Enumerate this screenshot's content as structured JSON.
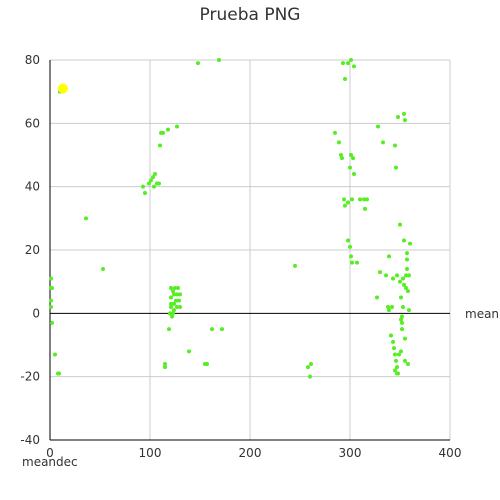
{
  "chart_data": {
    "type": "scatter",
    "title": "Prueba PNG",
    "xlabel": "mean",
    "ylabel": "meandec",
    "xlim": [
      0,
      400
    ],
    "ylim": [
      -40,
      80
    ],
    "x_ticks": [
      "0",
      "100",
      "200",
      "300",
      "400"
    ],
    "y_ticks": [
      "-40",
      "-20",
      "0",
      "20",
      "40",
      "60",
      "80"
    ],
    "grid": true,
    "colors": {
      "points": "#55ee22",
      "highlight": "#ffff00",
      "grid": "#cccccc",
      "axis": "#000000"
    },
    "highlight": {
      "x": 13,
      "y": 71
    },
    "series": [
      {
        "points": [
          [
            1,
            11
          ],
          [
            1,
            8
          ],
          [
            2,
            8
          ],
          [
            1,
            4
          ],
          [
            2,
            -3
          ],
          [
            1,
            2
          ],
          [
            5,
            -13
          ],
          [
            8,
            -19
          ],
          [
            9,
            -19
          ],
          [
            36,
            30
          ],
          [
            53,
            14
          ],
          [
            10,
            70
          ],
          [
            93,
            40
          ],
          [
            95,
            38
          ],
          [
            99,
            41
          ],
          [
            101,
            42
          ],
          [
            103,
            43
          ],
          [
            104,
            40
          ],
          [
            105,
            44
          ],
          [
            107,
            41
          ],
          [
            109,
            41
          ],
          [
            111,
            57
          ],
          [
            113,
            57
          ],
          [
            110,
            53
          ],
          [
            118,
            58
          ],
          [
            127,
            59
          ],
          [
            121,
            8
          ],
          [
            123,
            7
          ],
          [
            125,
            8
          ],
          [
            128,
            8
          ],
          [
            121,
            5
          ],
          [
            124,
            6
          ],
          [
            127,
            6
          ],
          [
            130,
            6
          ],
          [
            121,
            3
          ],
          [
            124,
            3
          ],
          [
            126,
            4
          ],
          [
            129,
            4
          ],
          [
            121,
            2
          ],
          [
            124,
            1
          ],
          [
            127,
            2
          ],
          [
            130,
            2
          ],
          [
            120,
            0
          ],
          [
            123,
            0
          ],
          [
            122,
            -1
          ],
          [
            119,
            -5
          ],
          [
            115,
            -16
          ],
          [
            115,
            -17
          ],
          [
            139,
            -12
          ],
          [
            155,
            -16
          ],
          [
            157,
            -16
          ],
          [
            162,
            -5
          ],
          [
            172,
            -5
          ],
          [
            148,
            79
          ],
          [
            169,
            80
          ],
          [
            245,
            15
          ],
          [
            258,
            -17
          ],
          [
            261,
            -16
          ],
          [
            260,
            -20
          ],
          [
            285,
            57
          ],
          [
            289,
            54
          ],
          [
            291,
            50
          ],
          [
            292,
            49
          ],
          [
            294,
            36
          ],
          [
            295,
            34
          ],
          [
            298,
            35
          ],
          [
            300,
            46
          ],
          [
            301,
            50
          ],
          [
            302,
            36
          ],
          [
            303,
            49
          ],
          [
            304,
            44
          ],
          [
            298,
            23
          ],
          [
            300,
            21
          ],
          [
            301,
            18
          ],
          [
            302,
            16
          ],
          [
            307,
            16
          ],
          [
            293,
            79
          ],
          [
            295,
            74
          ],
          [
            298,
            79
          ],
          [
            301,
            80
          ],
          [
            304,
            78
          ],
          [
            310,
            36
          ],
          [
            314,
            36
          ],
          [
            315,
            33
          ],
          [
            317,
            36
          ],
          [
            327,
            5
          ],
          [
            328,
            59
          ],
          [
            330,
            13
          ],
          [
            333,
            54
          ],
          [
            336,
            12
          ],
          [
            339,
            18
          ],
          [
            341,
            -7
          ],
          [
            343,
            -9
          ],
          [
            344,
            -11
          ],
          [
            345,
            -13
          ],
          [
            346,
            -15
          ],
          [
            347,
            -17
          ],
          [
            345,
            -18
          ],
          [
            347,
            -19
          ],
          [
            348,
            -19
          ],
          [
            338,
            2
          ],
          [
            339,
            1
          ],
          [
            342,
            2
          ],
          [
            343,
            11
          ],
          [
            345,
            53
          ],
          [
            346,
            46
          ],
          [
            347,
            12
          ],
          [
            348,
            62
          ],
          [
            350,
            10
          ],
          [
            350,
            28
          ],
          [
            351,
            5
          ],
          [
            351,
            -2
          ],
          [
            352,
            -5
          ],
          [
            352,
            -3
          ],
          [
            352,
            -1
          ],
          [
            353,
            2
          ],
          [
            353,
            11
          ],
          [
            354,
            9
          ],
          [
            354,
            23
          ],
          [
            354,
            63
          ],
          [
            355,
            61
          ],
          [
            355,
            -8
          ],
          [
            355,
            -15
          ],
          [
            356,
            12
          ],
          [
            356,
            8
          ],
          [
            357,
            14
          ],
          [
            357,
            17
          ],
          [
            357,
            19
          ],
          [
            358,
            7
          ],
          [
            359,
            12
          ],
          [
            360,
            22
          ],
          [
            359,
            1
          ],
          [
            358,
            -16
          ],
          [
            351,
            -12
          ],
          [
            349,
            -13
          ]
        ]
      }
    ]
  }
}
